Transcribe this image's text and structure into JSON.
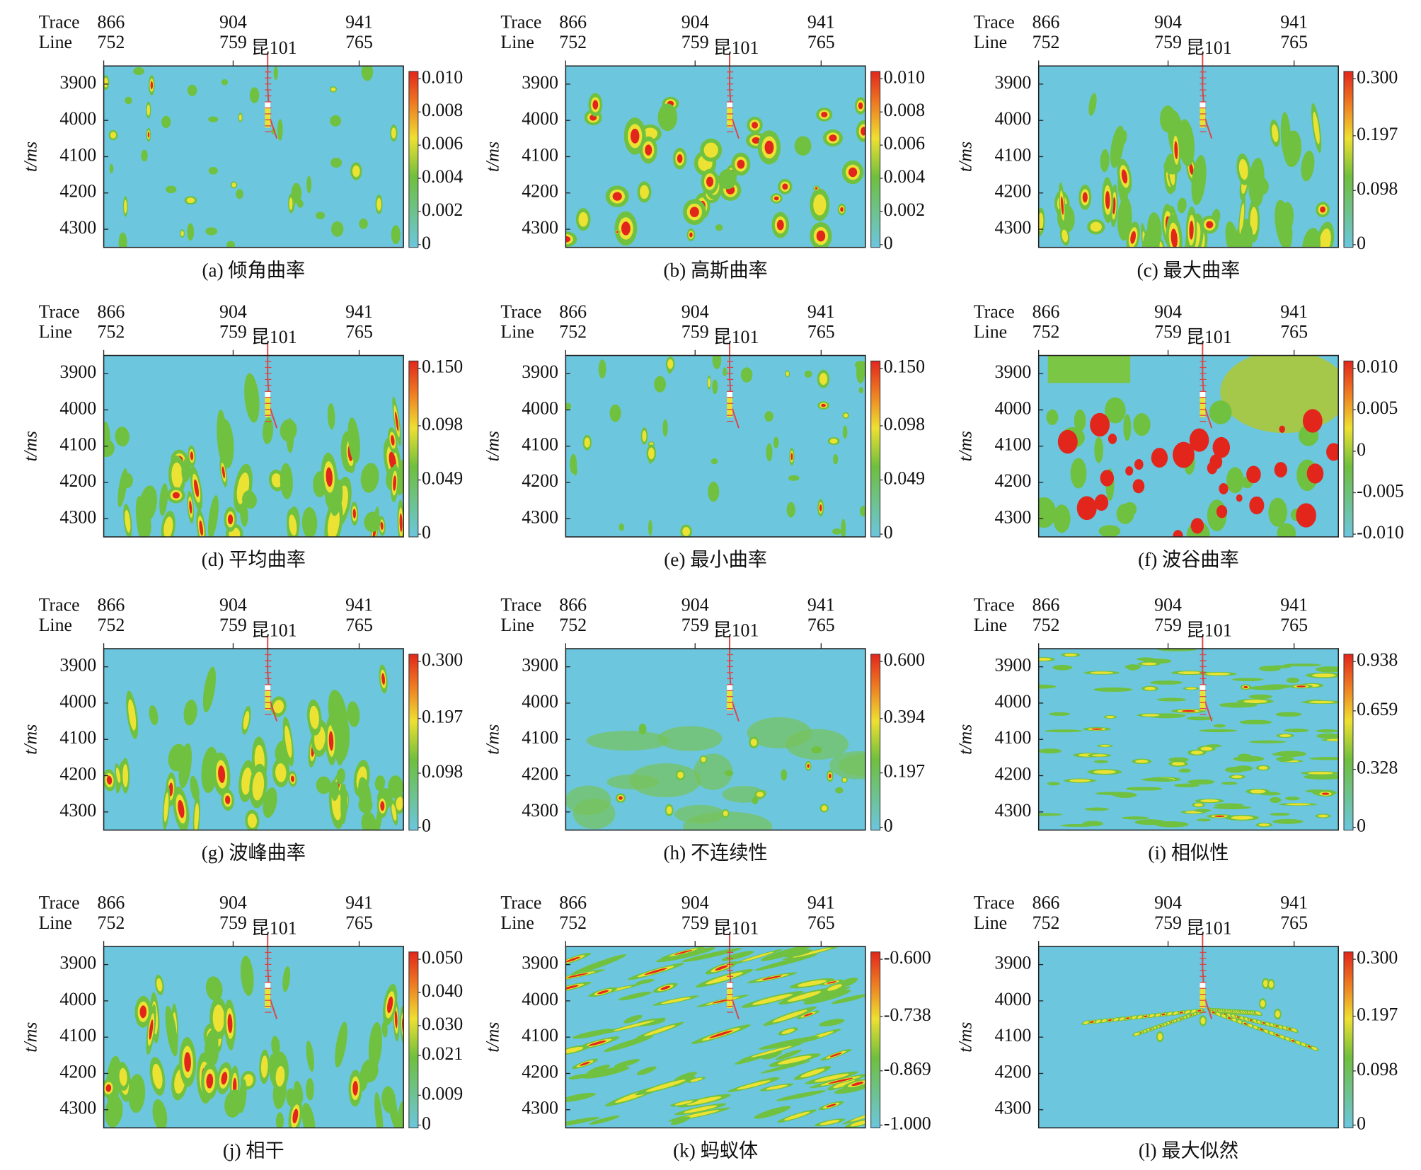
{
  "figure": {
    "trace_label": "Trace",
    "line_label": "Line",
    "well": "昆101",
    "y_label": "t/ms",
    "traces": [
      866,
      904,
      941
    ],
    "lines": [
      752,
      759,
      765
    ],
    "xlim": [
      866,
      954
    ],
    "ylim": [
      3850,
      4350
    ],
    "yticks": [
      3900,
      4000,
      4100,
      4200,
      4300
    ],
    "panels": [
      {
        "caption": "(a) 倾角曲率",
        "cticks": [
          {
            "value": 0.01,
            "label": "0.010"
          },
          0.008,
          0.006,
          0.004,
          0.002,
          0
        ]
      },
      {
        "caption": "(b) 高斯曲率",
        "cticks": [
          {
            "value": 0.01,
            "label": "0.010"
          },
          0.008,
          0.006,
          0.004,
          0.002,
          0
        ]
      },
      {
        "caption": "(c) 最大曲率",
        "cticks": [
          {
            "value": 0.3,
            "label": "0.300"
          },
          0.197,
          0.098,
          0
        ]
      },
      {
        "caption": "(d) 平均曲率",
        "cticks": [
          {
            "value": 0.15,
            "label": "0.150"
          },
          0.098,
          0.049,
          0
        ]
      },
      {
        "caption": "(e) 最小曲率",
        "cticks": [
          {
            "value": 0.15,
            "label": "0.150"
          },
          0.098,
          0.049,
          0
        ]
      },
      {
        "caption": "(f) 波谷曲率",
        "cticks": [
          {
            "value": 0.01,
            "label": "0.010"
          },
          0.005,
          0,
          -0.005,
          {
            "value": -0.01,
            "label": "-0.010"
          }
        ]
      },
      {
        "caption": "(g) 波峰曲率",
        "cticks": [
          {
            "value": 0.3,
            "label": "0.300"
          },
          0.197,
          0.098,
          0
        ]
      },
      {
        "caption": "(h) 不连续性",
        "cticks": [
          {
            "value": 0.6,
            "label": "0.600"
          },
          0.394,
          0.197,
          0
        ]
      },
      {
        "caption": "(i) 相似性",
        "cticks": [
          0.938,
          0.659,
          0.328,
          0
        ]
      },
      {
        "caption": "(j) 相干",
        "cticks": [
          {
            "value": 0.05,
            "label": "0.050"
          },
          {
            "value": 0.04,
            "label": "0.040"
          },
          {
            "value": 0.03,
            "label": "0.030"
          },
          0.021,
          0.009,
          0
        ]
      },
      {
        "caption": "(k) 蚂蚁体",
        "cticks": [
          {
            "value": -0.6,
            "label": "-0.600"
          },
          -0.738,
          -0.869,
          {
            "value": -1,
            "label": "-1.000"
          }
        ]
      },
      {
        "caption": "(l) 最大似然",
        "cticks": [
          {
            "value": 0.3,
            "label": "0.300"
          },
          0.197,
          0.098,
          0
        ]
      }
    ]
  }
}
